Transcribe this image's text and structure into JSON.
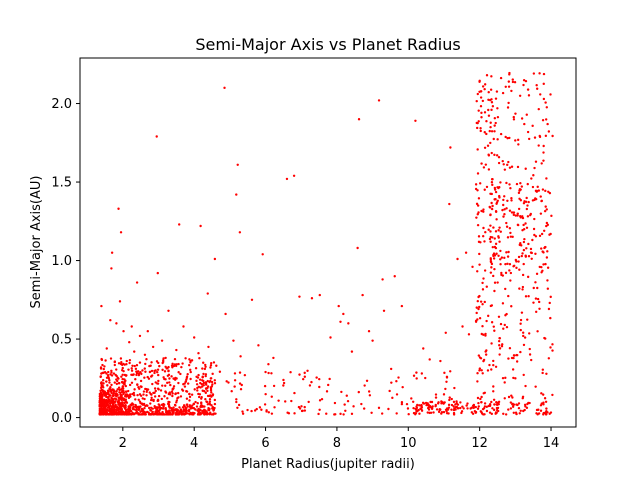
{
  "chart_data": {
    "type": "scatter",
    "title": "Semi-Major Axis vs Planet Radius",
    "xlabel": "Planet Radius(jupiter radii)",
    "ylabel": "Semi-Major Axis(AU)",
    "xlim": [
      0.8,
      14.7
    ],
    "ylim": [
      -0.06,
      2.29
    ],
    "xticks": [
      2,
      4,
      6,
      8,
      10,
      12,
      14
    ],
    "xtick_labels": [
      "2",
      "4",
      "6",
      "8",
      "10",
      "12",
      "14"
    ],
    "yticks": [
      0.0,
      0.5,
      1.0,
      1.5,
      2.0
    ],
    "ytick_labels": [
      "0.0",
      "0.5",
      "1.0",
      "1.5",
      "2.0"
    ],
    "grid": false,
    "marker_color": "#ff0000",
    "marker_size": 2,
    "points": [
      [
        1.4,
        0.71
      ],
      [
        1.55,
        0.44
      ],
      [
        1.65,
        0.62
      ],
      [
        1.7,
        1.05
      ],
      [
        1.68,
        0.95
      ],
      [
        1.75,
        0.28
      ],
      [
        1.82,
        0.6
      ],
      [
        1.88,
        1.33
      ],
      [
        1.95,
        1.18
      ],
      [
        1.92,
        0.74
      ],
      [
        2.02,
        0.55
      ],
      [
        2.1,
        0.34
      ],
      [
        2.18,
        0.48
      ],
      [
        2.25,
        0.58
      ],
      [
        2.32,
        0.42
      ],
      [
        2.4,
        0.86
      ],
      [
        2.45,
        0.27
      ],
      [
        2.48,
        0.52
      ],
      [
        2.55,
        0.3
      ],
      [
        2.62,
        0.4
      ],
      [
        2.7,
        0.55
      ],
      [
        2.78,
        0.33
      ],
      [
        2.85,
        0.45
      ],
      [
        2.92,
        0.3
      ],
      [
        2.95,
        1.79
      ],
      [
        2.98,
        0.92
      ],
      [
        3.1,
        0.49
      ],
      [
        3.2,
        0.38
      ],
      [
        3.28,
        0.68
      ],
      [
        3.38,
        0.33
      ],
      [
        3.5,
        0.43
      ],
      [
        3.58,
        1.23
      ],
      [
        3.7,
        0.58
      ],
      [
        3.8,
        0.26
      ],
      [
        3.9,
        0.36
      ],
      [
        4.0,
        0.51
      ],
      [
        4.12,
        0.41
      ],
      [
        4.18,
        1.22
      ],
      [
        4.3,
        0.31
      ],
      [
        4.38,
        0.79
      ],
      [
        4.4,
        0.45
      ],
      [
        4.58,
        1.01
      ],
      [
        4.62,
        0.33
      ],
      [
        4.85,
        2.1
      ],
      [
        4.88,
        0.66
      ],
      [
        5.1,
        0.49
      ],
      [
        5.18,
        1.42
      ],
      [
        5.22,
        1.61
      ],
      [
        5.28,
        1.18
      ],
      [
        5.3,
        0.39
      ],
      [
        5.42,
        0.27
      ],
      [
        5.62,
        0.75
      ],
      [
        5.8,
        0.46
      ],
      [
        5.92,
        1.04
      ],
      [
        6.0,
        0.29
      ],
      [
        6.08,
        0.34
      ],
      [
        6.22,
        0.38
      ],
      [
        6.52,
        0.22
      ],
      [
        6.6,
        1.52
      ],
      [
        6.8,
        1.54
      ],
      [
        6.95,
        0.77
      ],
      [
        7.1,
        0.26
      ],
      [
        7.3,
        0.76
      ],
      [
        7.52,
        0.78
      ],
      [
        7.82,
        0.51
      ],
      [
        8.05,
        0.71
      ],
      [
        8.1,
        0.61
      ],
      [
        8.18,
        0.66
      ],
      [
        8.32,
        0.6
      ],
      [
        8.42,
        0.42
      ],
      [
        8.58,
        1.08
      ],
      [
        8.62,
        1.9
      ],
      [
        8.72,
        0.78
      ],
      [
        8.9,
        0.55
      ],
      [
        9.0,
        0.49
      ],
      [
        9.18,
        2.02
      ],
      [
        9.28,
        0.88
      ],
      [
        9.32,
        0.68
      ],
      [
        9.52,
        0.31
      ],
      [
        9.62,
        0.9
      ],
      [
        9.82,
        0.71
      ],
      [
        10.2,
        1.89
      ],
      [
        10.42,
        0.44
      ],
      [
        10.6,
        0.37
      ],
      [
        10.9,
        0.36
      ],
      [
        11.05,
        0.54
      ],
      [
        11.18,
        1.72
      ],
      [
        11.15,
        1.36
      ],
      [
        11.38,
        1.01
      ],
      [
        11.62,
        1.05
      ],
      [
        11.52,
        0.58
      ],
      [
        11.7,
        0.53
      ],
      [
        11.8,
        0.96
      ],
      [
        11.9,
        0.61
      ]
    ],
    "clusters": [
      {
        "x_range": [
          1.35,
          4.6
        ],
        "y_range": [
          0.02,
          0.38
        ],
        "count": 900,
        "skew": 2.4
      },
      {
        "x_range": [
          1.35,
          2.2
        ],
        "y_range": [
          0.02,
          0.18
        ],
        "count": 250,
        "skew": 1.5
      },
      {
        "x_range": [
          4.0,
          11.5
        ],
        "y_range": [
          0.02,
          0.3
        ],
        "count": 170,
        "skew": 1.8
      },
      {
        "x_range": [
          10.2,
          14.0
        ],
        "y_range": [
          0.02,
          0.1
        ],
        "count": 160,
        "skew": 1.0
      },
      {
        "x_range": [
          11.9,
          14.05
        ],
        "y_range": [
          0.02,
          2.2
        ],
        "count": 420,
        "skew": 1.0
      },
      {
        "x_range": [
          12.3,
          13.9
        ],
        "y_range": [
          0.9,
          1.5
        ],
        "count": 140,
        "skew": 1.0
      }
    ]
  }
}
